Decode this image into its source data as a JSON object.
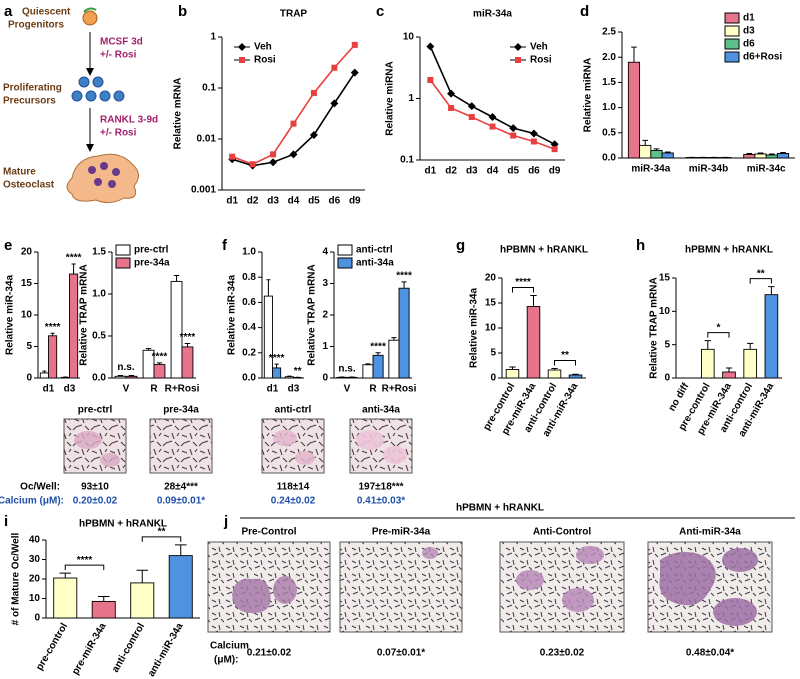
{
  "diagram": {
    "panel": "a",
    "stages": [
      [
        "Quiescent",
        "Progenitors"
      ],
      [
        "Proliferating",
        "Precursors"
      ],
      [
        "Mature",
        "Osteoclast"
      ]
    ],
    "steps": [
      [
        "MCSF 3d",
        "+/- Rosi"
      ],
      [
        "RANKL 3-9d",
        "+/- Rosi"
      ]
    ]
  },
  "chart_data": [
    {
      "panel": "b",
      "type": "line",
      "title": "TRAP",
      "y_label": "Relative mRNA",
      "categories": [
        "d1",
        "d2",
        "d3",
        "d4",
        "d5",
        "d6",
        "d9"
      ],
      "log_scale": true,
      "ylim": [
        0.001,
        1
      ],
      "yticks": [
        0.001,
        0.01,
        0.1,
        1
      ],
      "legend": "upper left",
      "series": [
        {
          "name": "Veh",
          "color": "#000000",
          "marker": "diamond",
          "values": [
            0.004,
            0.003,
            0.0035,
            0.005,
            0.012,
            0.05,
            0.2
          ]
        },
        {
          "name": "Rosi",
          "color": "#e8403f",
          "marker": "square",
          "values": [
            0.0045,
            0.0032,
            0.005,
            0.02,
            0.08,
            0.25,
            0.7
          ]
        }
      ]
    },
    {
      "panel": "c",
      "type": "line",
      "title": "miR-34a",
      "y_label": "Relative miRNA",
      "categories": [
        "d1",
        "d2",
        "d3",
        "d4",
        "d5",
        "d6",
        "d9"
      ],
      "log_scale": true,
      "ylim": [
        0.1,
        10
      ],
      "yticks": [
        0.1,
        1,
        10
      ],
      "legend": "upper right",
      "series": [
        {
          "name": "Veh",
          "color": "#000000",
          "marker": "diamond",
          "values": [
            7,
            1.2,
            0.75,
            0.5,
            0.33,
            0.27,
            0.18
          ]
        },
        {
          "name": "Rosi",
          "color": "#e8403f",
          "marker": "square",
          "values": [
            2,
            0.7,
            0.5,
            0.35,
            0.25,
            0.2,
            0.15
          ]
        }
      ]
    },
    {
      "panel": "d",
      "type": "bar",
      "y_label": "Relative miRNA",
      "categories": [
        "miR-34a",
        "miR-34b",
        "miR-34c"
      ],
      "ylim": [
        0,
        2.5
      ],
      "yticks": [
        {
          "value": 0,
          "label": "0.0"
        },
        0.5,
        {
          "value": 1,
          "label": "1.0"
        },
        1.5,
        {
          "value": 2,
          "label": "2.0"
        },
        2.5
      ],
      "legend": "upper right",
      "series": [
        {
          "name": "d1",
          "color": "#e8748c",
          "values": [
            1.9,
            0.01,
            0.07
          ],
          "errors": [
            0.3,
            0.003,
            0.02
          ]
        },
        {
          "name": "d3",
          "color": "#ffffc8",
          "values": [
            0.25,
            0.01,
            0.08
          ],
          "errors": [
            0.1,
            0.003,
            0.02
          ]
        },
        {
          "name": "d6",
          "color": "#5cc18a",
          "values": [
            0.15,
            0.01,
            0.06
          ],
          "errors": [
            0.03,
            0.003,
            0.02
          ]
        },
        {
          "name": "d6+Rosi",
          "color": "#4f92e0",
          "values": [
            0.1,
            0.01,
            0.09
          ],
          "errors": [
            0.02,
            0.003,
            0.02
          ]
        }
      ]
    },
    {
      "panel": "e",
      "type": "bar",
      "y_label": "Relative miR-34a",
      "categories": [
        "d1",
        "d3"
      ],
      "ylim": [
        0,
        20
      ],
      "yticks": [
        0,
        5,
        10,
        15,
        20
      ],
      "series": [
        {
          "color": "#ffffff",
          "values": [
            0.8,
            0.1
          ],
          "errors": [
            0.3,
            0.05
          ]
        },
        {
          "color": "#e8748c",
          "values": [
            6.7,
            16.5
          ],
          "errors": [
            0.4,
            1.6
          ],
          "stars": [
            "****",
            "****"
          ]
        }
      ]
    },
    {
      "type": "bar",
      "y_label": "Relative TRAP mRNA",
      "categories": [
        "V",
        "R",
        "R+Rosi"
      ],
      "ylim": [
        0,
        1.5
      ],
      "yticks": [
        {
          "value": 0,
          "label": "0.0"
        },
        0.5,
        {
          "value": 1,
          "label": "1.0"
        },
        1.5
      ],
      "legend": "upper left",
      "group_labels": [
        "n.s.",
        null,
        null
      ],
      "series": [
        {
          "name": "pre-ctrl",
          "color": "#ffffff",
          "values": [
            0.02,
            0.33,
            1.15
          ],
          "errors": [
            0.01,
            0.02,
            0.07
          ]
        },
        {
          "name": "pre-34a",
          "color": "#e8748c",
          "values": [
            0.02,
            0.16,
            0.37
          ],
          "errors": [
            0.01,
            0.02,
            0.04
          ],
          "stars": [
            null,
            "****",
            "****"
          ]
        }
      ]
    },
    {
      "panel": "f",
      "type": "bar",
      "y_label": "Relative miR-34a",
      "categories": [
        "d1",
        "d3"
      ],
      "ylim": [
        0,
        1
      ],
      "yticks": [
        {
          "value": 0,
          "label": "0.0"
        },
        0.2,
        0.4,
        0.6,
        0.8,
        {
          "value": 1,
          "label": "1.0"
        }
      ],
      "series": [
        {
          "color": "#ffffff",
          "values": [
            0.65,
            0.01
          ],
          "errors": [
            0.13,
            0.005
          ]
        },
        {
          "color": "#4f92e0",
          "values": [
            0.08,
            0.004
          ],
          "errors": [
            0.03,
            0.002
          ],
          "stars": [
            "****",
            "**"
          ]
        }
      ]
    },
    {
      "type": "bar",
      "y_label": "Relative TRAP mRNA",
      "categories": [
        "V",
        "R",
        "R+Rosi"
      ],
      "ylim": [
        0,
        4
      ],
      "yticks": [
        0,
        1,
        2,
        3,
        4
      ],
      "legend": "upper left",
      "group_labels": [
        "n.s.",
        null,
        null
      ],
      "series": [
        {
          "name": "anti-ctrl",
          "color": "#ffffff",
          "values": [
            0.02,
            0.42,
            1.2
          ],
          "errors": [
            0.01,
            0.03,
            0.08
          ]
        },
        {
          "name": "anti-34a",
          "color": "#4f92e0",
          "values": [
            0.02,
            0.72,
            2.85
          ],
          "errors": [
            0.01,
            0.08,
            0.2
          ],
          "stars": [
            null,
            "****",
            "****"
          ]
        }
      ]
    },
    {
      "panel": "g",
      "type": "bar",
      "title": "hPBMN + hRANKL",
      "y_label": "Relative miR-34a",
      "categories": [
        "pre-control",
        "pre-miR-34a",
        "anti-control",
        "anti-miR-34a"
      ],
      "values": [
        1.7,
        14.3,
        1.6,
        0.6
      ],
      "errors": [
        0.5,
        2.2,
        0.3,
        0.15
      ],
      "colors": [
        "#ffffc8",
        "#e8748c",
        "#ffffc8",
        "#4f92e0"
      ],
      "ylim": [
        0,
        20
      ],
      "yticks": [
        0,
        5,
        10,
        15,
        20
      ],
      "brackets": [
        {
          "from": "pre-control",
          "to": "pre-miR-34a",
          "text": "****"
        },
        {
          "from": "anti-control",
          "to": "anti-miR-34a",
          "text": "**"
        }
      ]
    },
    {
      "panel": "h",
      "type": "bar",
      "title": "hPBMN + hRANKL",
      "y_label": "Relative TRAP mRNA",
      "categories": [
        "no diff",
        "pre-control",
        "pre-miR-34a",
        "anti-control",
        "anti-miR-34a"
      ],
      "values": [
        0,
        4.3,
        0.9,
        4.3,
        12.5
      ],
      "errors": [
        0,
        1.3,
        0.6,
        0.9,
        1.2
      ],
      "colors": [
        "#ffffc8",
        "#ffffc8",
        "#e8748c",
        "#ffffc8",
        "#4f92e0"
      ],
      "ylim": [
        0,
        15
      ],
      "yticks": [
        0,
        5,
        10,
        15
      ],
      "brackets": [
        {
          "from": "pre-control",
          "to": "pre-miR-34a",
          "text": "*"
        },
        {
          "from": "anti-control",
          "to": "anti-miR-34a",
          "text": "**"
        }
      ]
    },
    {
      "panel": "i",
      "type": "bar",
      "title": "hPBMN + hRANKL",
      "y_label": "# of Mature Oc/Well",
      "categories": [
        "pre-control",
        "pre-miR-34a",
        "anti-control",
        "anti-miR-34a"
      ],
      "values": [
        20.5,
        8.5,
        18,
        32
      ],
      "errors": [
        2.5,
        2.5,
        6.5,
        5.5
      ],
      "colors": [
        "#ffffc8",
        "#e8748c",
        "#ffffc8",
        "#4f92e0"
      ],
      "ylim": [
        0,
        40
      ],
      "yticks": [
        0,
        10,
        20,
        30,
        40
      ],
      "brackets": [
        {
          "from": "pre-control",
          "to": "pre-miR-34a",
          "text": "****"
        },
        {
          "from": "anti-control",
          "to": "anti-miR-34a",
          "text": "**"
        }
      ]
    }
  ],
  "micrographs": [
    {
      "row_labels": [
        "Oc/Well:",
        "Calcium (μM):"
      ],
      "images": [
        {
          "title": "pre-ctrl",
          "oc_per_well": "93±10",
          "calcium": "0.20±0.02"
        },
        {
          "title": "pre-34a",
          "oc_per_well": "28±4***",
          "calcium": "0.09±0.01*"
        }
      ]
    },
    {
      "images": [
        {
          "title": "anti-ctrl",
          "oc_per_well": "118±14",
          "calcium": "0.24±0.02"
        },
        {
          "title": "anti-34a",
          "oc_per_well": "197±18***",
          "calcium": "0.41±0.03*"
        }
      ]
    },
    {
      "panel": "j",
      "title": "hPBMN + hRANKL",
      "row_label": [
        "Calcium",
        "(μM):"
      ],
      "images": [
        {
          "title": "Pre-Control",
          "calcium": "0.21±0.02"
        },
        {
          "title": "Pre-miR-34a",
          "calcium": "0.07±0.01*"
        },
        {
          "title": "Anti-Control",
          "calcium": "0.23±0.02"
        },
        {
          "title": "Anti-miR-34a",
          "calcium": "0.48±0.04*"
        }
      ]
    }
  ]
}
